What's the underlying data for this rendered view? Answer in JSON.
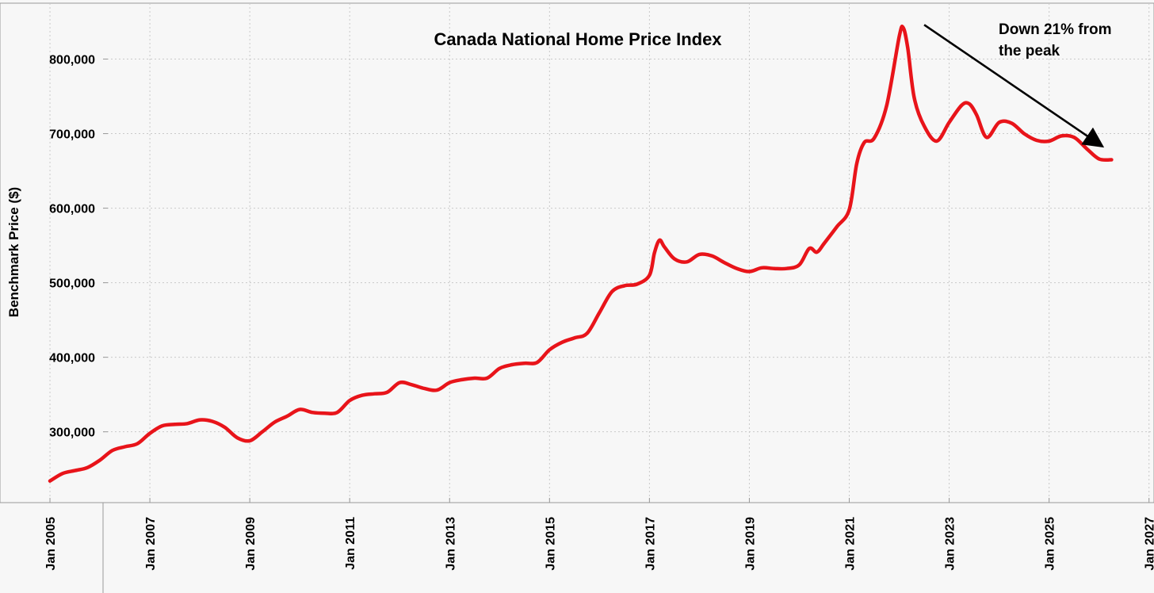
{
  "chart_data": {
    "type": "line",
    "title": "Canada National Home Price Index",
    "xlabel": "",
    "ylabel": "Benchmark Price ($)",
    "xlim": [
      2004,
      2027.1
    ],
    "ylim": [
      205000,
      875000
    ],
    "yticks": [
      300000,
      400000,
      500000,
      600000,
      700000,
      800000
    ],
    "ytick_labels": [
      "300,000",
      "400,000",
      "500,000",
      "600,000",
      "700,000",
      "800,000"
    ],
    "xticks": [
      2005,
      2007,
      2009,
      2011,
      2013,
      2015,
      2017,
      2019,
      2021,
      2023,
      2025,
      2027
    ],
    "xtick_labels": [
      "Jan 2005",
      "Jan 2007",
      "Jan 2009",
      "Jan 2011",
      "Jan 2013",
      "Jan 2015",
      "Jan 2017",
      "Jan 2019",
      "Jan 2021",
      "Jan 2023",
      "Jan 2025",
      "Jan 2027"
    ],
    "grid": true,
    "line_color": "#e8141a",
    "series": [
      {
        "name": "Benchmark Price",
        "x": [
          2005.0,
          2005.25,
          2005.5,
          2005.75,
          2006.0,
          2006.25,
          2006.5,
          2006.75,
          2007.0,
          2007.25,
          2007.5,
          2007.75,
          2008.0,
          2008.25,
          2008.5,
          2008.75,
          2009.0,
          2009.25,
          2009.5,
          2009.75,
          2010.0,
          2010.25,
          2010.5,
          2010.75,
          2011.0,
          2011.25,
          2011.5,
          2011.75,
          2012.0,
          2012.25,
          2012.5,
          2012.75,
          2013.0,
          2013.25,
          2013.5,
          2013.75,
          2014.0,
          2014.25,
          2014.5,
          2014.75,
          2015.0,
          2015.25,
          2015.5,
          2015.75,
          2016.0,
          2016.25,
          2016.5,
          2016.75,
          2017.0,
          2017.1,
          2017.2,
          2017.3,
          2017.5,
          2017.75,
          2018.0,
          2018.25,
          2018.5,
          2018.75,
          2019.0,
          2019.25,
          2019.5,
          2019.75,
          2020.0,
          2020.2,
          2020.35,
          2020.5,
          2020.75,
          2021.0,
          2021.15,
          2021.3,
          2021.5,
          2021.75,
          2022.0,
          2022.08,
          2022.17,
          2022.3,
          2022.5,
          2022.75,
          2023.0,
          2023.25,
          2023.4,
          2023.55,
          2023.75,
          2024.0,
          2024.25,
          2024.5,
          2024.75,
          2025.0,
          2025.25,
          2025.5,
          2025.75,
          2026.0,
          2026.25
        ],
        "values": [
          234000,
          244000,
          248000,
          252000,
          262000,
          275000,
          280000,
          284000,
          298000,
          308000,
          310000,
          311000,
          316000,
          314000,
          306000,
          292000,
          288000,
          300000,
          313000,
          321000,
          330000,
          326000,
          325000,
          326000,
          342000,
          349000,
          351000,
          353000,
          366000,
          363000,
          358000,
          356000,
          366000,
          370000,
          372000,
          372000,
          385000,
          390000,
          392000,
          393000,
          410000,
          420000,
          426000,
          432000,
          460000,
          488000,
          496000,
          498000,
          510000,
          540000,
          557000,
          548000,
          532000,
          528000,
          538000,
          536000,
          527000,
          519000,
          515000,
          520000,
          519000,
          519000,
          524000,
          546000,
          541000,
          553000,
          575000,
          598000,
          660000,
          688000,
          694000,
          738000,
          830000,
          842000,
          815000,
          748000,
          710000,
          690000,
          715000,
          738000,
          740000,
          725000,
          695000,
          715000,
          714000,
          700000,
          691000,
          690000,
          697000,
          695000,
          680000,
          666000,
          665000
        ]
      }
    ],
    "annotations": [
      {
        "text_lines": [
          "Down 21% from",
          "the peak"
        ],
        "arrow_from": [
          2022.5,
          846000
        ],
        "arrow_to": [
          2026.0,
          686000
        ]
      }
    ]
  }
}
